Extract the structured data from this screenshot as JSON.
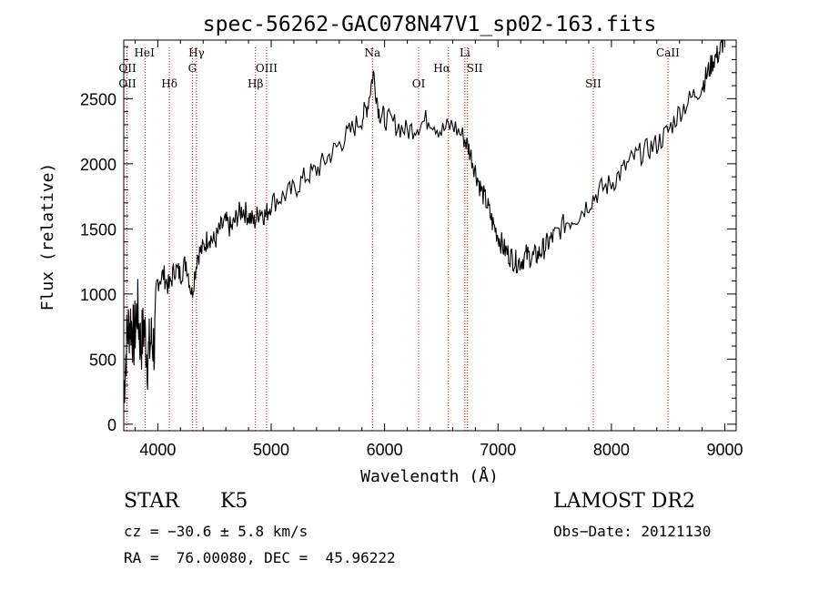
{
  "chart_data": {
    "type": "line",
    "title": "spec-56262-GAC078N47V1_sp02-163.fits",
    "xlabel": "Wavelength (Å)",
    "ylabel": "Flux (relative)",
    "xlim": [
      3700,
      9100
    ],
    "ylim": [
      -50,
      2950
    ],
    "xticks": [
      4000,
      5000,
      6000,
      7000,
      8000,
      9000
    ],
    "yticks": [
      0,
      500,
      1000,
      1500,
      2000,
      2500
    ],
    "grid": false,
    "series": [
      {
        "x": [
          3700,
          3730,
          3760,
          3790,
          3820,
          3850,
          3880,
          3910,
          3940,
          3970,
          4000,
          4050,
          4100,
          4150,
          4200,
          4250,
          4300,
          4350,
          4400,
          4450,
          4500,
          4550,
          4600,
          4650,
          4700,
          4750,
          4800,
          4850,
          4900,
          4950,
          5000,
          5100,
          5200,
          5300,
          5400,
          5500,
          5600,
          5700,
          5800,
          5850,
          5900,
          5950,
          6000,
          6100,
          6200,
          6300,
          6400,
          6500,
          6600,
          6700,
          6750,
          6800,
          6850,
          6900,
          6950,
          7000,
          7050,
          7100,
          7150,
          7200,
          7250,
          7300,
          7350,
          7400,
          7450,
          7500,
          7600,
          7700,
          7800,
          7900,
          8000,
          8100,
          8200,
          8300,
          8400,
          8500,
          8600,
          8700,
          8800,
          8850,
          8900,
          8950,
          8990
        ],
        "values": [
          250,
          700,
          800,
          650,
          900,
          600,
          750,
          500,
          650,
          600,
          1100,
          1150,
          1050,
          1200,
          1150,
          1250,
          1000,
          1300,
          1350,
          1450,
          1400,
          1500,
          1550,
          1500,
          1600,
          1650,
          1600,
          1550,
          1650,
          1600,
          1700,
          1750,
          1800,
          1900,
          1950,
          2050,
          2150,
          2250,
          2350,
          2450,
          2700,
          2400,
          2350,
          2300,
          2250,
          2300,
          2350,
          2250,
          2300,
          2200,
          2100,
          1950,
          1800,
          1700,
          1550,
          1450,
          1350,
          1300,
          1250,
          1250,
          1300,
          1280,
          1300,
          1350,
          1400,
          1450,
          1550,
          1600,
          1700,
          1800,
          1850,
          1950,
          2050,
          2100,
          2150,
          2250,
          2400,
          2500,
          2600,
          2700,
          2800,
          2850,
          2950
        ]
      }
    ],
    "lines": [
      {
        "x": 3727,
        "labels": [
          "OII",
          "OII"
        ]
      },
      {
        "x": 3889,
        "labels": [
          "HeI"
        ]
      },
      {
        "x": 4102,
        "labels": [
          "Hδ"
        ]
      },
      {
        "x": 4305,
        "labels": [
          "G"
        ]
      },
      {
        "x": 4341,
        "labels": [
          "Hγ"
        ]
      },
      {
        "x": 4861,
        "labels": [
          "Hβ"
        ]
      },
      {
        "x": 4959,
        "labels": [
          "OIII"
        ]
      },
      {
        "x": 5893,
        "labels": [
          "Na"
        ]
      },
      {
        "x": 6300,
        "labels": [
          "OI"
        ]
      },
      {
        "x": 6563,
        "labels": [
          "Hα"
        ]
      },
      {
        "x": 6708,
        "labels": [
          "Li"
        ]
      },
      {
        "x": 6731,
        "labels": [
          "SII"
        ]
      },
      {
        "x": 7840,
        "labels": [
          "SII"
        ]
      },
      {
        "x": 8498,
        "labels": [
          "CaII"
        ]
      }
    ]
  },
  "info": {
    "class_label": "STAR",
    "subclass": "K5",
    "survey": "LAMOST DR2",
    "cz": "cz = −30.6 ± 5.8 km/s",
    "obs_date": "Obs−Date: 20121130",
    "coords": "RA =  76.00080, DEC =  45.96222"
  },
  "colors": {
    "spectrum": "#000000",
    "line_marker": "#cc0000"
  }
}
